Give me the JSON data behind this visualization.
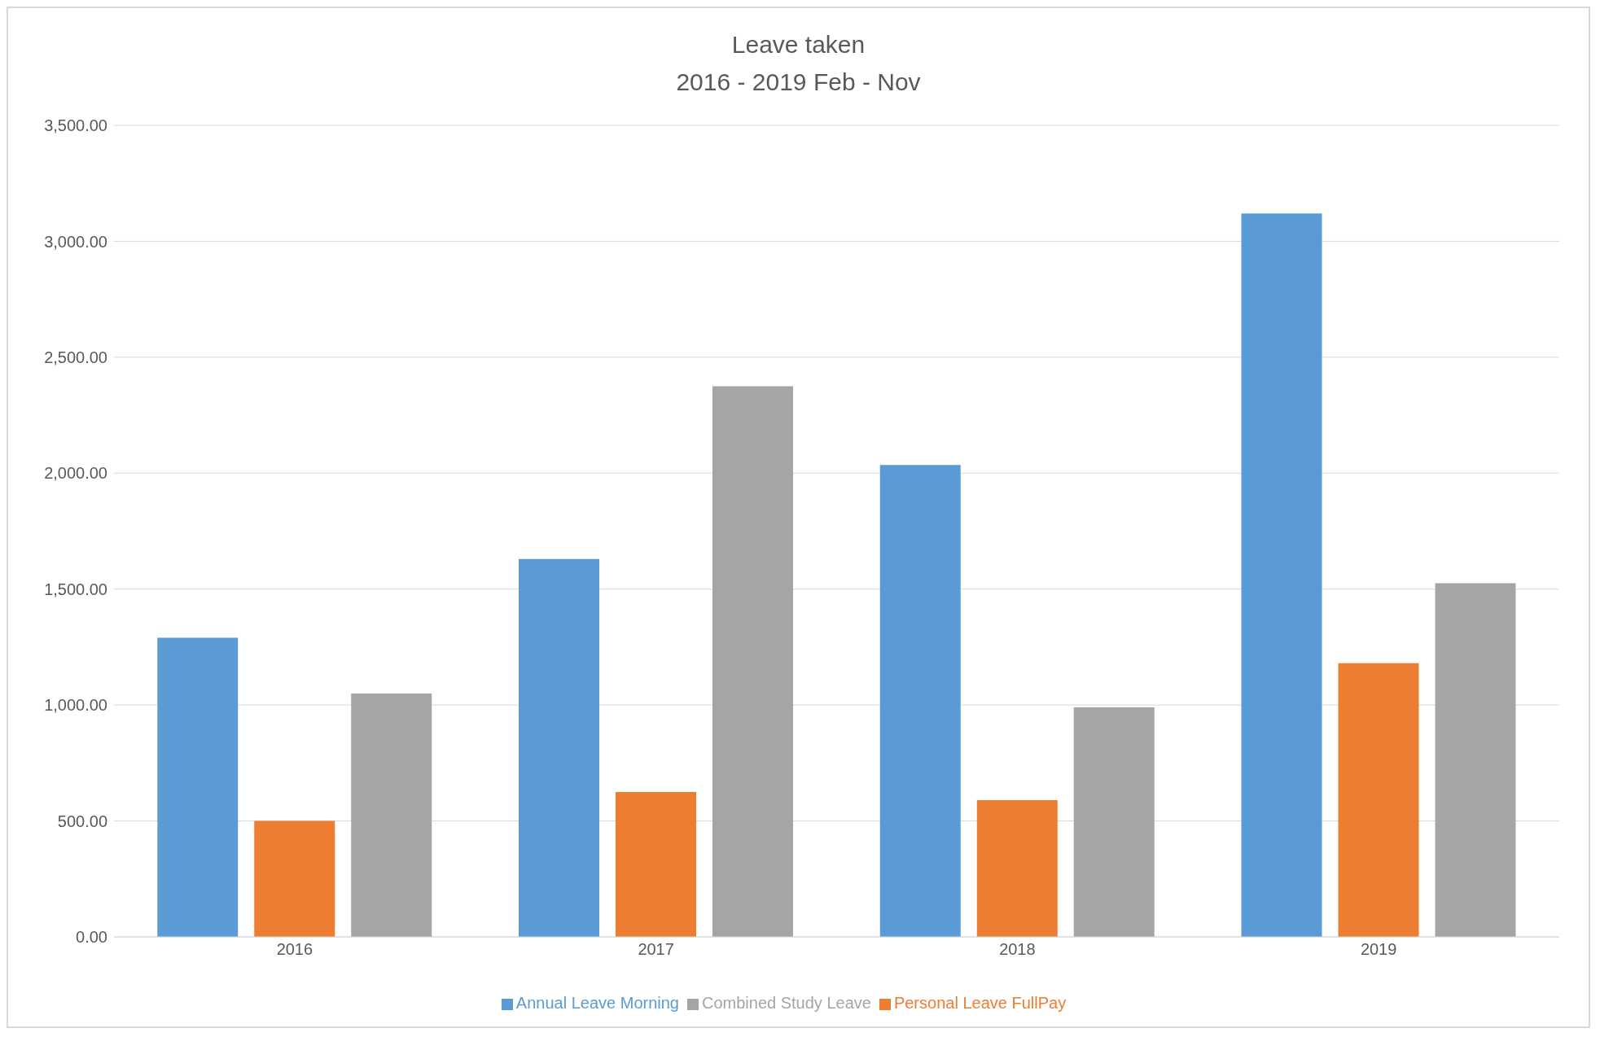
{
  "chart_data": {
    "type": "bar",
    "title": "Leave taken",
    "subtitle": "2016 - 2019 Feb  - Nov",
    "categories": [
      "2016",
      "2017",
      "2018",
      "2019"
    ],
    "series": [
      {
        "name": "Annual Leave Morning",
        "color": "#5b9bd5",
        "values": [
          1290,
          1630,
          2035,
          3120
        ]
      },
      {
        "name": "Personal Leave FullPay",
        "color": "#ed7d31",
        "values": [
          500,
          625,
          590,
          1180
        ]
      },
      {
        "name": "Combined Study Leave",
        "color": "#a5a5a5",
        "values": [
          1050,
          2375,
          990,
          1525
        ]
      }
    ],
    "ylim": [
      0,
      3500
    ],
    "yticks": [
      {
        "value": 0,
        "label": "0.00"
      },
      {
        "value": 500,
        "label": "500.00"
      },
      {
        "value": 1000,
        "label": "1,000.00"
      },
      {
        "value": 1500,
        "label": "1,500.00"
      },
      {
        "value": 2000,
        "label": "2,000.00"
      },
      {
        "value": 2500,
        "label": "2,500.00"
      },
      {
        "value": 3000,
        "label": "3,000.00"
      },
      {
        "value": 3500,
        "label": "3,500.00"
      }
    ],
    "grid": "y",
    "legend": "bottom"
  }
}
